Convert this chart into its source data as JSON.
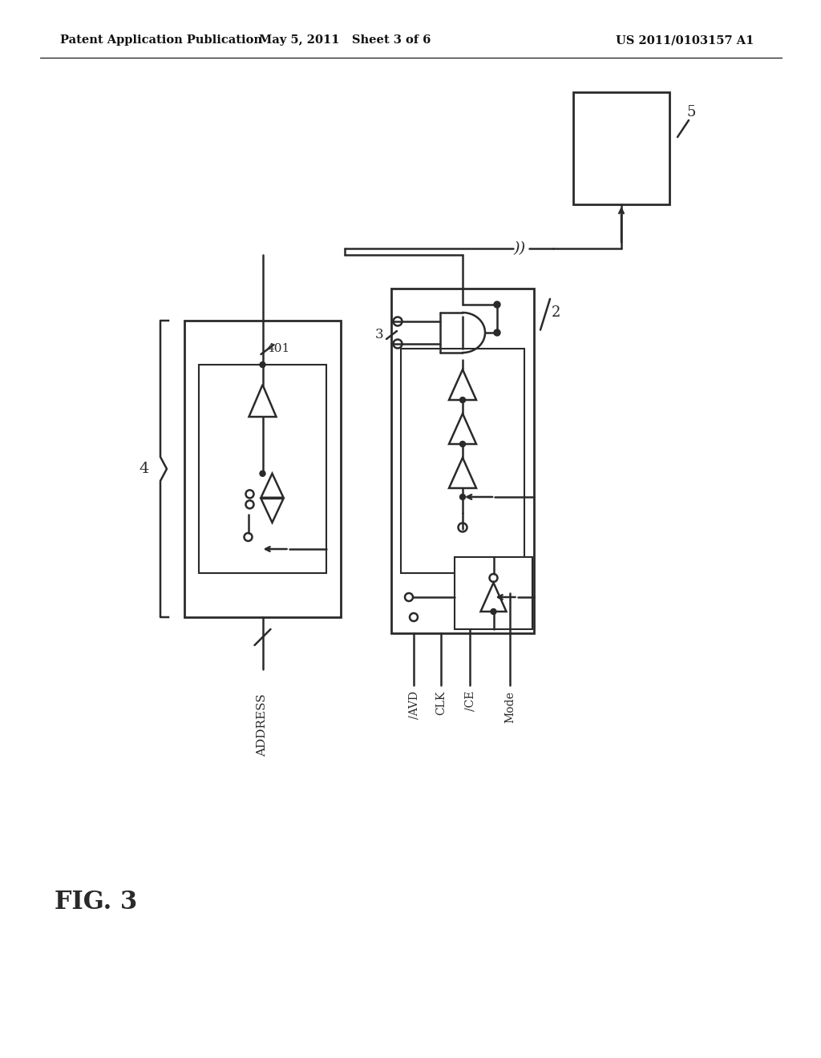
{
  "bg_color": "#ffffff",
  "line_color": "#2a2a2a",
  "header_left": "Patent Application Publication",
  "header_mid": "May 5, 2011   Sheet 3 of 6",
  "header_right": "US 2011/0103157 A1",
  "fig_label": "FIG. 3",
  "label_2": "2",
  "label_3": "3",
  "label_4": "4",
  "label_5": "5",
  "label_401": "401",
  "label_ADDRESS": "ADDRESS",
  "label_IAVD": "/AVD",
  "label_CLK": "CLK",
  "label_ICE": "/CE",
  "label_Mode": "Mode"
}
